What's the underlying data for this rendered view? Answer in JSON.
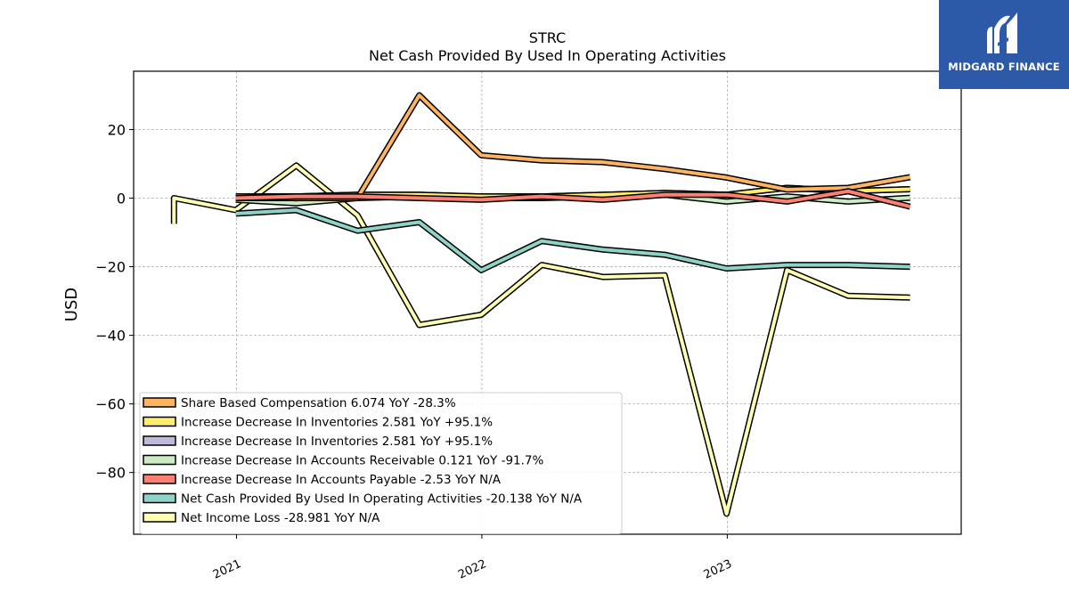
{
  "brand": {
    "name": "MIDGARD FINANCE",
    "bg_color": "#2d5aa8"
  },
  "chart_data": {
    "type": "line",
    "title": "STRC",
    "subtitle": "Net Cash Provided By Used In Operating Activities",
    "ylabel": "USD",
    "xlabel": "",
    "ylim": [
      -98,
      37
    ],
    "yticks": [
      20,
      0,
      -20,
      -40,
      -60,
      -80
    ],
    "ytick_labels": [
      "20",
      "0",
      "−20",
      "−40",
      "−60",
      "−80"
    ],
    "xticks": [
      "2021-01-01",
      "2022-01-01",
      "2023-01-01"
    ],
    "xtick_labels": [
      "2021",
      "2022",
      "2023"
    ],
    "grid": true,
    "legend_placement": "lower-left",
    "series": [
      {
        "name": "Net Income Loss",
        "legend": "Net Income Loss  -28.981 YoY N/A",
        "color": "#ffffb3",
        "step_start": {
          "x": "2020-09-30",
          "y": -7.5
        },
        "x": [
          "2020-09-30",
          "2020-12-31",
          "2021-03-31",
          "2021-06-30",
          "2021-09-30",
          "2021-12-31",
          "2022-03-31",
          "2022-06-30",
          "2022-09-30",
          "2022-12-31",
          "2023-03-31",
          "2023-06-30",
          "2023-09-30"
        ],
        "y": [
          0,
          -3.5,
          9.5,
          -5,
          -37,
          -34,
          -19.5,
          -23,
          -22.5,
          -92,
          -21,
          -28.5,
          -29
        ]
      },
      {
        "name": "Net Cash Provided By Used In Operating Activities",
        "legend": "Net Cash Provided By Used In Operating Activities  -20.138 YoY N/A",
        "color": "#8dd3c7",
        "x": [
          "2020-12-31",
          "2021-03-31",
          "2021-06-30",
          "2021-09-30",
          "2021-12-31",
          "2022-03-31",
          "2022-06-30",
          "2022-09-30",
          "2022-12-31",
          "2023-03-31",
          "2023-06-30",
          "2023-09-30"
        ],
        "y": [
          -4.5,
          -3.5,
          -9.5,
          -7,
          -21,
          -12.5,
          -15,
          -16.5,
          -20.5,
          -19.5,
          -19.5,
          -20
        ]
      },
      {
        "name": "Increase Decrease In Accounts Receivable",
        "legend": "Increase Decrease In Accounts Receivable  0.121 YoY -91.7%",
        "color": "#ccebc5",
        "x": [
          "2020-12-31",
          "2021-03-31",
          "2021-06-30",
          "2021-09-30",
          "2021-12-31",
          "2022-03-31",
          "2022-06-30",
          "2022-09-30",
          "2022-12-31",
          "2023-03-31",
          "2023-06-30",
          "2023-09-30"
        ],
        "y": [
          -0.5,
          -1.5,
          0,
          0.5,
          0,
          0,
          0.5,
          1,
          -1,
          0.5,
          -1,
          0.1
        ]
      },
      {
        "name": "Increase Decrease In Inventories",
        "legend": "Increase Decrease In Inventories  2.581 YoY +95.1%",
        "color": "#bebada",
        "x": [
          "2020-12-31",
          "2021-03-31",
          "2021-06-30",
          "2021-09-30",
          "2021-12-31",
          "2022-03-31",
          "2022-06-30",
          "2022-09-30",
          "2022-12-31",
          "2023-03-31",
          "2023-06-30",
          "2023-09-30"
        ],
        "y": [
          0.5,
          0.5,
          1,
          1,
          0.5,
          0.5,
          1,
          1.5,
          1,
          3,
          2,
          2.6
        ]
      },
      {
        "name": "Increase Decrease In Inventories",
        "legend": "Increase Decrease In Inventories  2.581 YoY +95.1%",
        "color": "#ffed6f",
        "x": [
          "2020-12-31",
          "2021-03-31",
          "2021-06-30",
          "2021-09-30",
          "2021-12-31",
          "2022-03-31",
          "2022-06-30",
          "2022-09-30",
          "2022-12-31",
          "2023-03-31",
          "2023-06-30",
          "2023-09-30"
        ],
        "y": [
          0.5,
          0.5,
          1,
          1,
          0.5,
          0.5,
          1,
          1.5,
          1,
          3,
          2,
          2.6
        ]
      },
      {
        "name": "Share Based Compensation",
        "legend": "Share Based Compensation  6.074 YoY -28.3%",
        "color": "#fdb462",
        "x": [
          "2020-12-31",
          "2021-03-31",
          "2021-06-30",
          "2021-09-30",
          "2021-12-31",
          "2022-03-31",
          "2022-06-30",
          "2022-09-30",
          "2022-12-31",
          "2023-03-31",
          "2023-06-30",
          "2023-09-30"
        ],
        "y": [
          0,
          0,
          0,
          30,
          12.5,
          11,
          10.5,
          8.5,
          6,
          2.5,
          3,
          6.1
        ]
      },
      {
        "name": "Increase Decrease In Accounts Payable",
        "legend": "Increase Decrease In Accounts Payable  -2.53 YoY N/A",
        "color": "#fb8072",
        "x": [
          "2020-12-31",
          "2021-03-31",
          "2021-06-30",
          "2021-09-30",
          "2021-12-31",
          "2022-03-31",
          "2022-06-30",
          "2022-09-30",
          "2022-12-31",
          "2023-03-31",
          "2023-06-30",
          "2023-09-30"
        ],
        "y": [
          0,
          0.5,
          0.5,
          0,
          -0.5,
          0.5,
          -0.5,
          1,
          1,
          -1,
          2,
          -2.5
        ]
      }
    ],
    "legend_order": [
      5,
      4,
      3,
      2,
      6,
      1,
      0
    ]
  }
}
